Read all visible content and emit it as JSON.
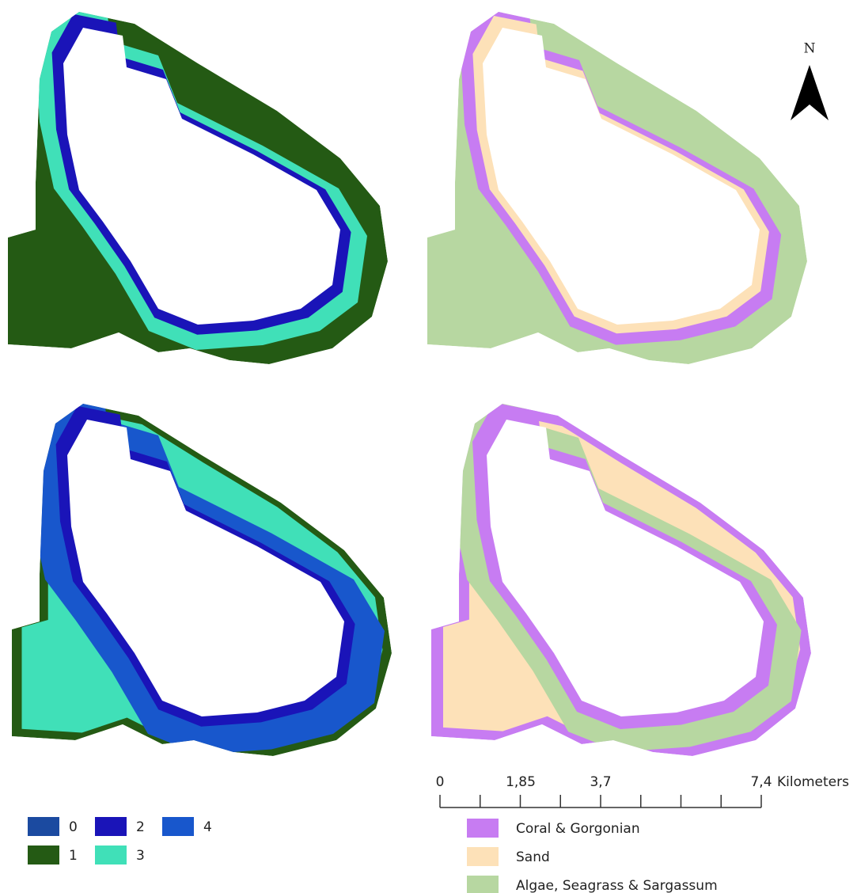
{
  "north_arrow": {
    "label": "N"
  },
  "scale_bar": {
    "labels": [
      "0",
      "1,85",
      "3,7",
      "7,4"
    ],
    "unit": "Kilometers"
  },
  "cluster_legend": {
    "items": [
      {
        "label": "0",
        "color": "#1b4aa0"
      },
      {
        "label": "1",
        "color": "#245a14"
      },
      {
        "label": "2",
        "color": "#1a14b8"
      },
      {
        "label": "3",
        "color": "#40e0b8"
      },
      {
        "label": "4",
        "color": "#1857cc"
      }
    ]
  },
  "class_legend": {
    "items": [
      {
        "label": "Coral & Gorgonian",
        "color": "#c77cf2"
      },
      {
        "label": "Sand",
        "color": "#fde1b8"
      },
      {
        "label": "Algae, Seagrass & Sargassum",
        "color": "#b7d7a1"
      }
    ]
  }
}
